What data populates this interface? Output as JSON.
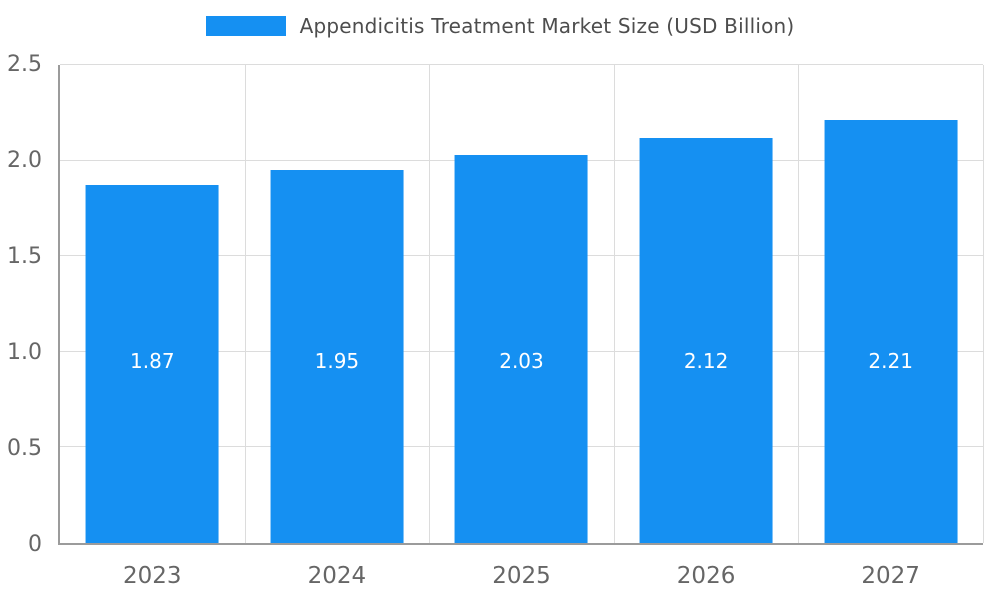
{
  "chart_data": {
    "type": "bar",
    "title": "Appendicitis Treatment Market Size (USD Billion)",
    "categories": [
      "2023",
      "2024",
      "2025",
      "2026",
      "2027"
    ],
    "values": [
      1.87,
      1.95,
      2.03,
      2.12,
      2.21
    ],
    "data_labels": [
      "1.87",
      "1.95",
      "2.03",
      "2.12",
      "2.21"
    ],
    "y_ticks": [
      "0",
      "0.5",
      "1.0",
      "1.5",
      "2.0",
      "2.5"
    ],
    "ylim": [
      0,
      2.5
    ],
    "xlabel": "",
    "ylabel": "",
    "grid": true,
    "legend_position": "top",
    "bar_color": "#1590F2",
    "axis_color": "#9b9b9b",
    "gridline_color": "#dcdcdc",
    "tick_label_color": "#666666",
    "title_color": "#4d4d4d",
    "data_label_color": "#ffffff"
  }
}
